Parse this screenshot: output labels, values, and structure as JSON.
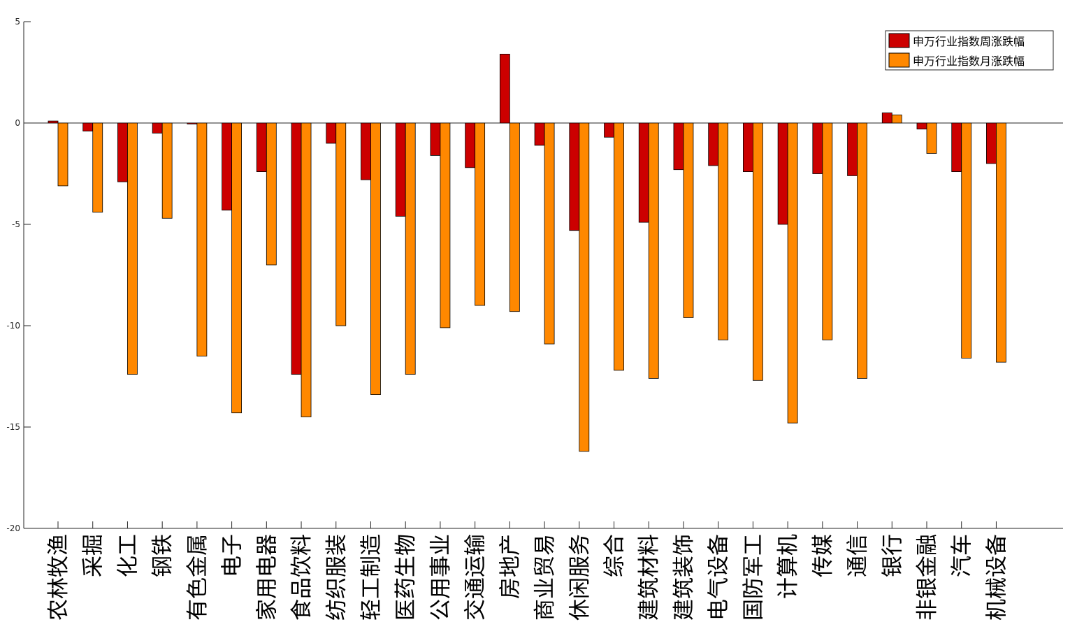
{
  "chart_data": {
    "type": "bar",
    "categories": [
      "农林牧渔",
      "采掘",
      "化工",
      "钢铁",
      "有色金属",
      "电子",
      "家用电器",
      "食品饮料",
      "纺织服装",
      "轻工制造",
      "医药生物",
      "公用事业",
      "交通运输",
      "房地产",
      "商业贸易",
      "休闲服务",
      "综合",
      "建筑材料",
      "建筑装饰",
      "电气设备",
      "国防军工",
      "计算机",
      "传媒",
      "通信",
      "银行",
      "非银金融",
      "汽车",
      "机械设备"
    ],
    "series": [
      {
        "name": "申万行业指数周涨跌幅",
        "color": "#cc0000",
        "values": [
          0.1,
          -0.4,
          -2.9,
          -0.5,
          -0.05,
          -4.3,
          -2.4,
          -12.4,
          -1.0,
          -2.8,
          -4.6,
          -1.6,
          -2.2,
          3.4,
          -1.1,
          -5.3,
          -0.7,
          -4.9,
          -2.3,
          -2.1,
          -2.4,
          -5.0,
          -2.5,
          -2.6,
          0.5,
          -0.3,
          -2.4,
          -2.0
        ]
      },
      {
        "name": "申万行业指数月涨跌幅",
        "color": "#ff8800",
        "values": [
          -3.1,
          -4.4,
          -12.4,
          -4.7,
          -11.5,
          -14.3,
          -7.0,
          -14.5,
          -10.0,
          -13.4,
          -12.4,
          -10.1,
          -9.0,
          -9.3,
          -10.9,
          -16.2,
          -12.2,
          -12.6,
          -9.6,
          -10.7,
          -12.7,
          -14.8,
          -10.7,
          -12.6,
          0.4,
          -1.5,
          -11.6,
          -11.8
        ]
      }
    ],
    "yticks": [
      "5",
      "0",
      "-5",
      "-10",
      "-15",
      "-20"
    ],
    "ylim": [
      -20,
      5
    ],
    "legend_position": "top-right",
    "grid": false,
    "title": "",
    "xlabel": "",
    "ylabel": ""
  }
}
